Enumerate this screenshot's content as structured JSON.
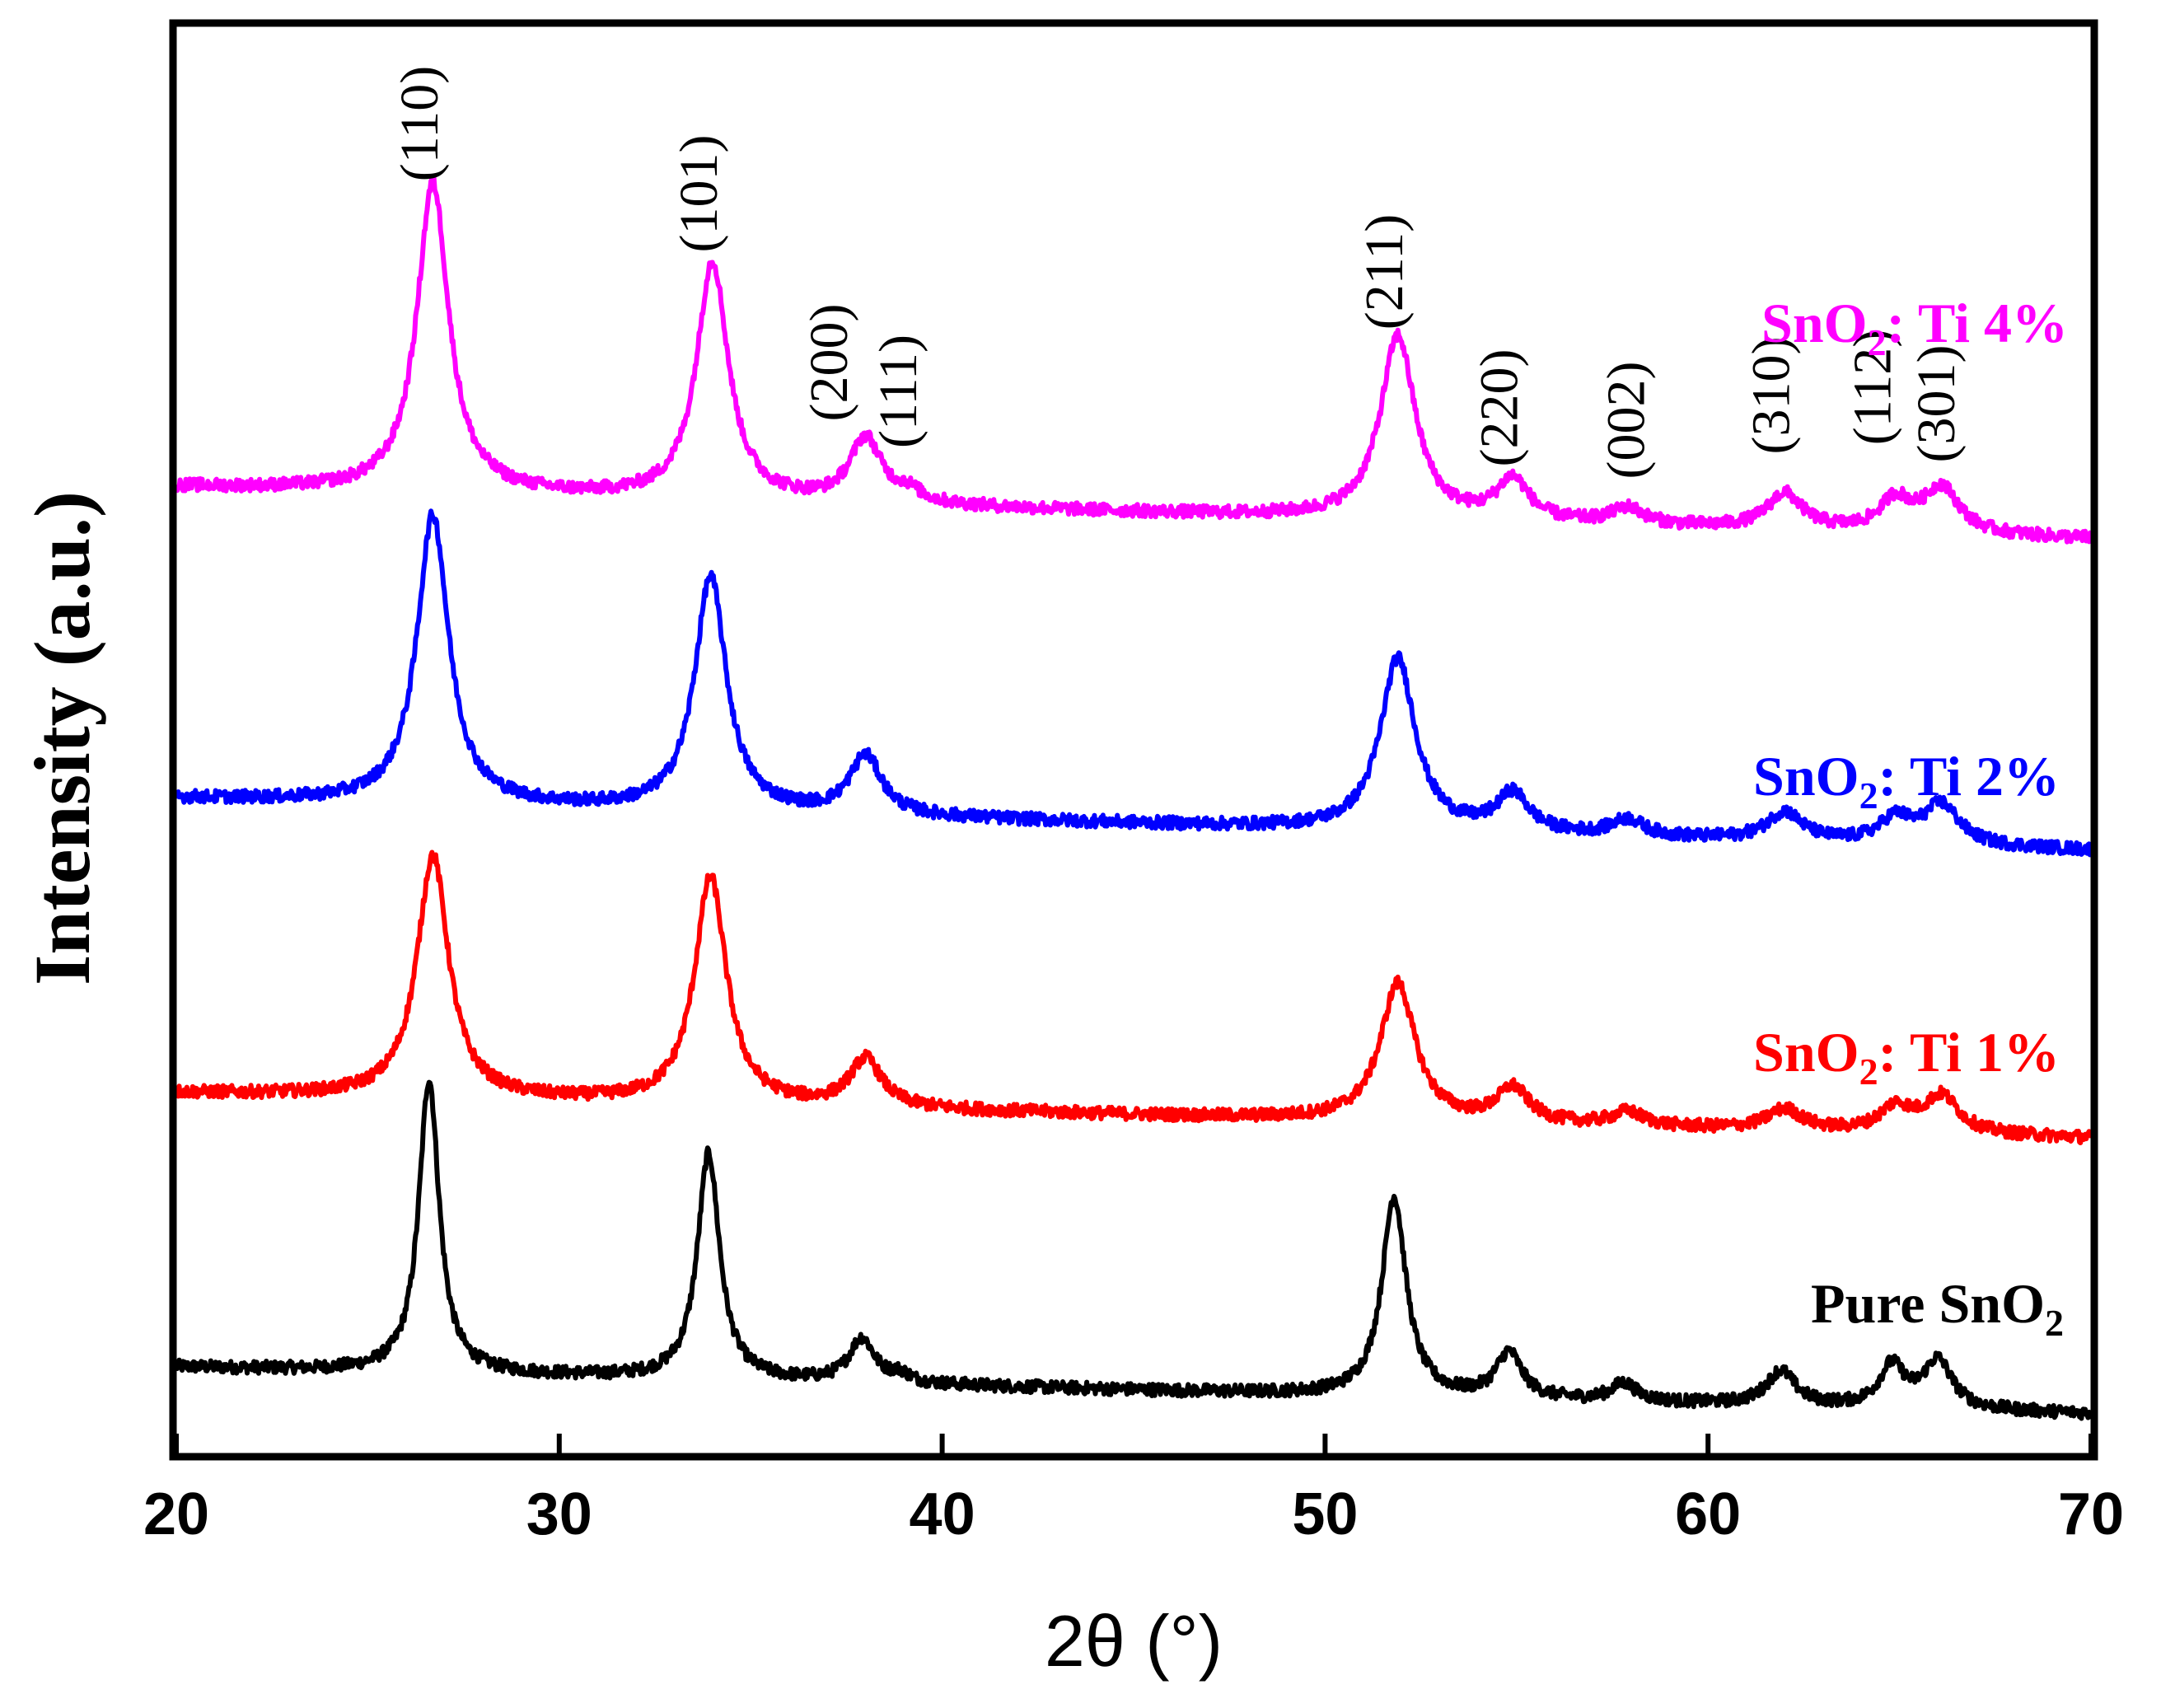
{
  "chart_data": {
    "type": "line",
    "title": "",
    "xlabel": "2θ (°)",
    "ylabel": "Intensity (a.u.)",
    "xlim": [
      20,
      70
    ],
    "ylim": [
      0,
      100
    ],
    "xticks": [
      "20",
      "30",
      "40",
      "50",
      "60",
      "70"
    ],
    "grid": false,
    "legend_placement": "right, beside each trace",
    "peak_annotations": [
      {
        "label": "(110)",
        "x": 26.6
      },
      {
        "label": "(101)",
        "x": 33.9
      },
      {
        "label": "(200)",
        "x": 37.9
      },
      {
        "label": "(111)",
        "x": 39.0
      },
      {
        "label": "(211)",
        "x": 51.8
      },
      {
        "label": "(220)",
        "x": 54.8
      },
      {
        "label": "(002)",
        "x": 57.9
      },
      {
        "label": "(310)",
        "x": 61.9
      },
      {
        "label": "(112)",
        "x": 64.8
      },
      {
        "label": "(301)",
        "x": 66.0
      }
    ],
    "series": [
      {
        "name": "Pure SnO2",
        "label_main": "Pure SnO",
        "label_sub": "2",
        "label_tail": "",
        "color": "#000000",
        "baseline_start": 3.4,
        "baseline_end": 0.0,
        "peaks": [
          {
            "x": 26.6,
            "height": 21.3,
            "width": 0.32
          },
          {
            "x": 33.9,
            "height": 16.4,
            "width": 0.35
          },
          {
            "x": 37.9,
            "height": 3.2,
            "width": 0.4
          },
          {
            "x": 38.9,
            "height": 0.6,
            "width": 0.3
          },
          {
            "x": 51.8,
            "height": 14.5,
            "width": 0.38
          },
          {
            "x": 54.8,
            "height": 3.3,
            "width": 0.4
          },
          {
            "x": 57.8,
            "height": 1.3,
            "width": 0.4
          },
          {
            "x": 61.9,
            "height": 2.5,
            "width": 0.45
          },
          {
            "x": 64.8,
            "height": 3.0,
            "width": 0.4
          },
          {
            "x": 66.0,
            "height": 3.5,
            "width": 0.45
          }
        ]
      },
      {
        "name": "SnO2: Ti 1%",
        "label_main": "SnO",
        "label_sub": "2",
        "label_tail": ": Ti 1%",
        "color": "#ff0000",
        "baseline_start": 23.3,
        "baseline_end": 20.0,
        "peaks": [
          {
            "x": 26.7,
            "height": 17.6,
            "width": 0.5
          },
          {
            "x": 33.95,
            "height": 16.5,
            "width": 0.5
          },
          {
            "x": 38.0,
            "height": 3.5,
            "width": 0.5
          },
          {
            "x": 51.9,
            "height": 10.0,
            "width": 0.55
          },
          {
            "x": 54.9,
            "height": 2.5,
            "width": 0.5
          },
          {
            "x": 57.9,
            "height": 1.0,
            "width": 0.5
          },
          {
            "x": 62.0,
            "height": 1.5,
            "width": 0.55
          },
          {
            "x": 64.9,
            "height": 1.8,
            "width": 0.5
          },
          {
            "x": 66.1,
            "height": 2.7,
            "width": 0.55
          }
        ]
      },
      {
        "name": "SnO2: Ti 2%",
        "label_main": "SnO",
        "label_sub": "2",
        "label_tail": ": Ti 2%",
        "color": "#0000ff",
        "baseline_start": 44.7,
        "baseline_end": 40.9,
        "peaks": [
          {
            "x": 26.7,
            "height": 21.0,
            "width": 0.5
          },
          {
            "x": 33.95,
            "height": 17.0,
            "width": 0.5
          },
          {
            "x": 38.0,
            "height": 4.3,
            "width": 0.5
          },
          {
            "x": 51.9,
            "height": 12.5,
            "width": 0.55
          },
          {
            "x": 54.9,
            "height": 2.8,
            "width": 0.5
          },
          {
            "x": 57.9,
            "height": 1.2,
            "width": 0.5
          },
          {
            "x": 62.0,
            "height": 2.1,
            "width": 0.55
          },
          {
            "x": 64.9,
            "height": 1.8,
            "width": 0.5
          },
          {
            "x": 66.1,
            "height": 2.9,
            "width": 0.55
          }
        ]
      },
      {
        "name": "SnO2: Ti 4%",
        "label_main": "SnO",
        "label_sub": "2",
        "label_tail": ": Ti 4%",
        "color": "#ff00ff",
        "baseline_start": 67.3,
        "baseline_end": 63.5,
        "peaks": [
          {
            "x": 26.7,
            "height": 22.5,
            "width": 0.5
          },
          {
            "x": 34.0,
            "height": 17.3,
            "width": 0.5
          },
          {
            "x": 38.0,
            "height": 4.7,
            "width": 0.5
          },
          {
            "x": 39.1,
            "height": 0.8,
            "width": 0.4
          },
          {
            "x": 51.9,
            "height": 13.3,
            "width": 0.55
          },
          {
            "x": 54.9,
            "height": 3.0,
            "width": 0.5
          },
          {
            "x": 57.9,
            "height": 1.2,
            "width": 0.5
          },
          {
            "x": 62.0,
            "height": 2.6,
            "width": 0.55
          },
          {
            "x": 64.9,
            "height": 2.3,
            "width": 0.5
          },
          {
            "x": 66.1,
            "height": 3.3,
            "width": 0.55
          }
        ]
      }
    ]
  }
}
